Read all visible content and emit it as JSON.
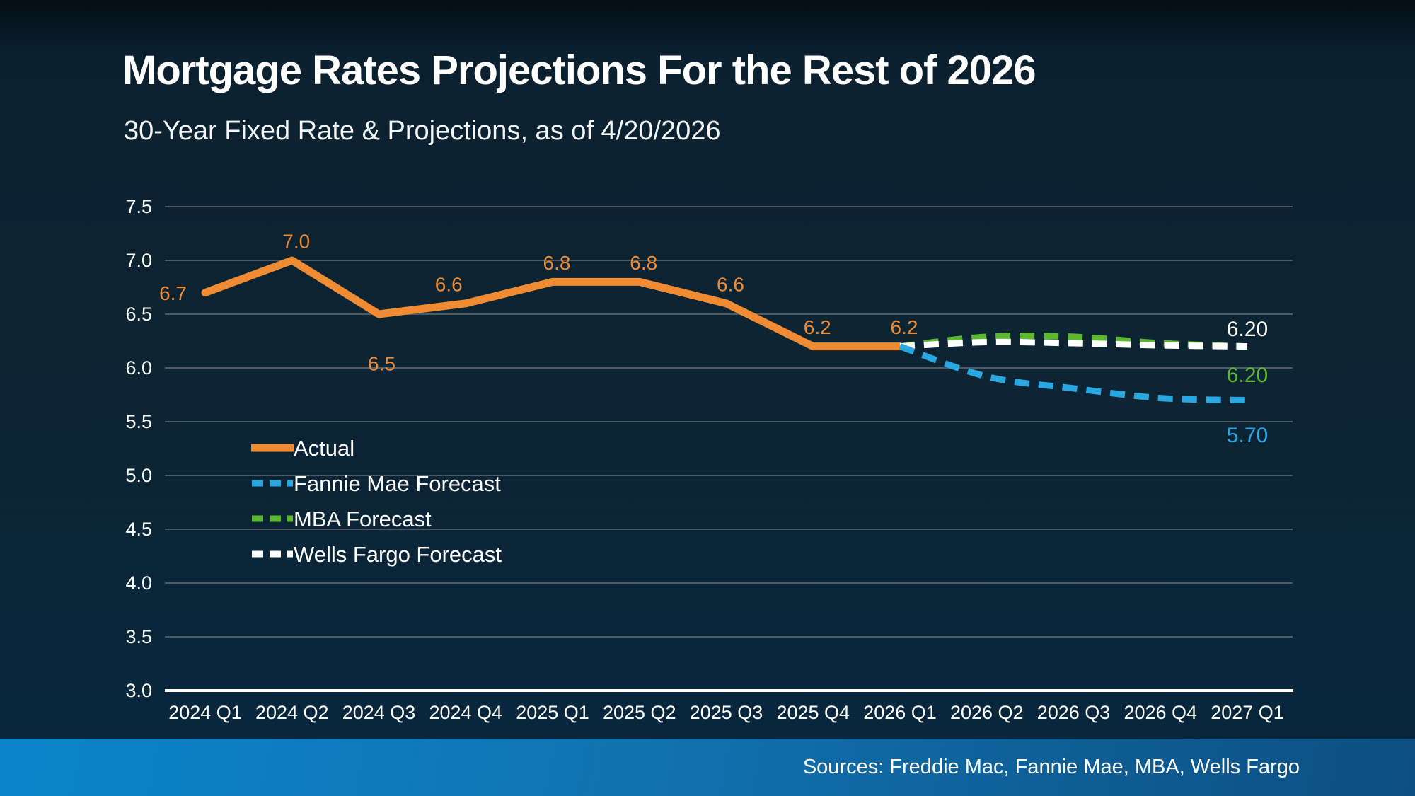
{
  "chart_data": {
    "type": "line",
    "title": "Mortgage Rates Projections For the Rest of 2026",
    "subtitle": "30-Year Fixed Rate & Projections, as of 4/20/2026",
    "categories": [
      "2024 Q1",
      "2024 Q2",
      "2024 Q3",
      "2024 Q4",
      "2025 Q1",
      "2025 Q2",
      "2025 Q3",
      "2025 Q4",
      "2026 Q1",
      "2026 Q2",
      "2026 Q3",
      "2026 Q4",
      "2027 Q1"
    ],
    "ylim": [
      3.0,
      7.5
    ],
    "yticks": [
      7.5,
      7.0,
      6.5,
      6.0,
      5.5,
      5.0,
      4.5,
      4.0,
      3.5,
      3.0
    ],
    "grid": true,
    "legend_position": "inside-left",
    "series": [
      {
        "name": "Actual",
        "color": "#ee8b33",
        "style": "solid",
        "values": [
          6.7,
          7.0,
          6.5,
          6.6,
          6.8,
          6.8,
          6.6,
          6.2,
          6.2,
          null,
          null,
          null,
          null
        ],
        "point_labels": [
          "6.7",
          "7.0",
          "6.5",
          "6.6",
          "6.8",
          "6.8",
          "6.6",
          "6.2",
          "6.2",
          null,
          null,
          null,
          null
        ],
        "label_placement": [
          "left",
          "above",
          "below",
          "above-left",
          "above",
          "above",
          "above",
          "above",
          "above",
          null,
          null,
          null,
          null
        ]
      },
      {
        "name": "Fannie Mae Forecast",
        "color": "#29a7e0",
        "style": "dashed",
        "values": [
          null,
          null,
          null,
          null,
          null,
          null,
          null,
          null,
          6.2,
          5.92,
          5.81,
          5.72,
          5.7
        ],
        "end_label": "5.70",
        "end_label_dy": 50
      },
      {
        "name": "MBA Forecast",
        "color": "#5cb92f",
        "style": "dashed",
        "values": [
          null,
          null,
          null,
          null,
          null,
          null,
          null,
          null,
          6.2,
          6.29,
          6.29,
          6.23,
          6.2
        ],
        "end_label": "6.20",
        "end_label_dy": 41
      },
      {
        "name": "Wells Fargo Forecast",
        "color": "#ffffff",
        "style": "dashed",
        "values": [
          null,
          null,
          null,
          null,
          null,
          null,
          null,
          null,
          6.2,
          6.24,
          6.23,
          6.21,
          6.2
        ],
        "end_label": "6.20",
        "end_label_dy": -24
      }
    ]
  },
  "footer": {
    "source": "Sources: Freddie Mac, Fannie Mae, MBA, Wells Fargo"
  },
  "colors": {
    "background": "#0c2433",
    "gridline": "#4d5963",
    "axis_line": "#ffffff",
    "accent_orange": "#ee8b33",
    "accent_blue": "#29a7e0",
    "accent_green": "#5cb92f",
    "footer_left": "#0a85cb",
    "footer_right": "#0d568b"
  }
}
